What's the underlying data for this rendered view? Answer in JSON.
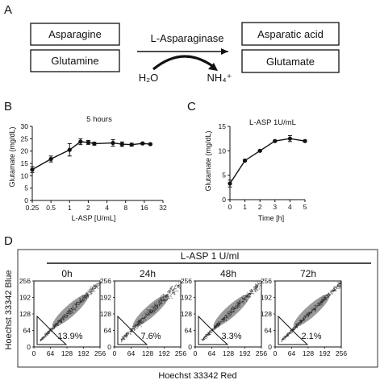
{
  "panels": {
    "a": "A",
    "b": "B",
    "c": "C",
    "d": "D"
  },
  "reaction": {
    "substrates": [
      "Asparagine",
      "Glutamine"
    ],
    "products": [
      "Asparatic  acid",
      "Glutamate"
    ],
    "enzyme": "L-Asparaginase",
    "cofactor_in": "H₂O",
    "cofactor_out": "NH₄⁺"
  },
  "chart_data": [
    {
      "type": "line",
      "panel": "B",
      "annotation": "5 hours",
      "xlabel": "L-ASP [U/mL]",
      "ylabel": "Glutamate (mg/dL)",
      "x_scale": "log2",
      "xlim": [
        0.25,
        32
      ],
      "ylim": [
        0,
        30
      ],
      "x_tick_labels": [
        "0.25",
        "0.5",
        "1",
        "2",
        "4",
        "8",
        "16",
        "32"
      ],
      "y_tick_labels": [
        "0",
        "5",
        "10",
        "15",
        "20",
        "25",
        "30"
      ],
      "x_ticks": [
        0.25,
        0.5,
        1,
        2,
        4,
        8,
        16,
        32
      ],
      "y_ticks": [
        0,
        5,
        10,
        15,
        20,
        25,
        30
      ],
      "x": [
        0.25,
        0.5,
        1,
        1.5,
        2,
        2.5,
        5,
        7,
        10,
        15,
        20
      ],
      "y": [
        12.5,
        16.8,
        20.5,
        23.8,
        23.5,
        23,
        23.3,
        22.8,
        22.6,
        23.1,
        22.8
      ],
      "err": [
        1.2,
        1.2,
        2.5,
        1.2,
        0.8,
        0.6,
        1.3,
        0.9,
        0.6,
        0.4,
        0.3
      ]
    },
    {
      "type": "line",
      "panel": "C",
      "annotation": "L-ASP 1U/mL",
      "xlabel": "Time [h]",
      "ylabel": "Glutamate (mg/dL)",
      "xlim": [
        0,
        5
      ],
      "ylim": [
        0,
        15
      ],
      "x_tick_labels": [
        "0",
        "1",
        "2",
        "3",
        "4",
        "5"
      ],
      "y_tick_labels": [
        "0",
        "5",
        "10",
        "15"
      ],
      "x_ticks": [
        0,
        1,
        2,
        3,
        4,
        5
      ],
      "y_ticks": [
        0,
        5,
        10,
        15
      ],
      "x": [
        0,
        1,
        2,
        3,
        4,
        5
      ],
      "y": [
        3.3,
        8.0,
        10.0,
        12.0,
        12.5,
        12.0
      ],
      "err": [
        0.7,
        0.2,
        0.2,
        0.2,
        0.6,
        0.2
      ]
    }
  ],
  "flow": {
    "title": "L-ASP 1 U/ml",
    "ylabel": "Hoechst 33342 Blue",
    "xlabel": "Hoechst 33342 Red",
    "tick_labels": [
      "0",
      "64",
      "128",
      "192",
      "256"
    ],
    "panels": [
      {
        "time": "0h",
        "pct": "13.9%"
      },
      {
        "time": "24h",
        "pct": "7.6%"
      },
      {
        "time": "48h",
        "pct": "3.3%"
      },
      {
        "time": "72h",
        "pct": "2.1%"
      }
    ]
  }
}
